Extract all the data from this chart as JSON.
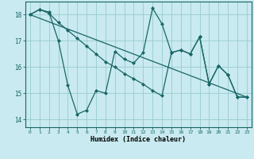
{
  "xlabel": "Humidex (Indice chaleur)",
  "bg_color": "#c8eaf0",
  "line_color": "#1a6666",
  "grid_color": "#99cccc",
  "ylim": [
    13.7,
    18.5
  ],
  "xlim": [
    -0.5,
    23.5
  ],
  "yticks": [
    14,
    15,
    16,
    17,
    18
  ],
  "xticks": [
    0,
    1,
    2,
    3,
    4,
    5,
    6,
    7,
    8,
    9,
    10,
    11,
    12,
    13,
    14,
    15,
    16,
    17,
    18,
    19,
    20,
    21,
    22,
    23
  ],
  "series1_x": [
    0,
    1,
    2,
    3,
    4,
    5,
    6,
    7,
    8,
    9,
    10,
    11,
    12,
    13,
    14,
    15,
    16,
    17,
    18,
    19,
    20,
    21,
    22,
    23
  ],
  "series1_y": [
    18.0,
    18.2,
    18.1,
    17.0,
    15.3,
    14.2,
    14.35,
    15.1,
    15.0,
    16.6,
    16.3,
    16.15,
    16.55,
    18.25,
    17.65,
    16.55,
    16.65,
    16.5,
    17.15,
    15.35,
    16.05,
    15.7,
    14.85,
    14.85
  ],
  "series2_x": [
    0,
    1,
    2,
    3,
    4,
    5,
    6,
    7,
    8,
    9,
    10,
    11,
    12,
    13,
    14,
    15,
    16,
    17,
    18,
    19,
    20,
    21,
    22,
    23
  ],
  "series2_y": [
    18.0,
    18.2,
    18.05,
    17.7,
    17.4,
    17.1,
    16.8,
    16.5,
    16.2,
    16.0,
    15.75,
    15.55,
    15.35,
    15.1,
    14.9,
    16.55,
    16.65,
    16.5,
    17.15,
    15.35,
    16.05,
    15.7,
    14.85,
    14.85
  ],
  "series3_x": [
    0,
    23
  ],
  "series3_y": [
    18.0,
    14.85
  ]
}
